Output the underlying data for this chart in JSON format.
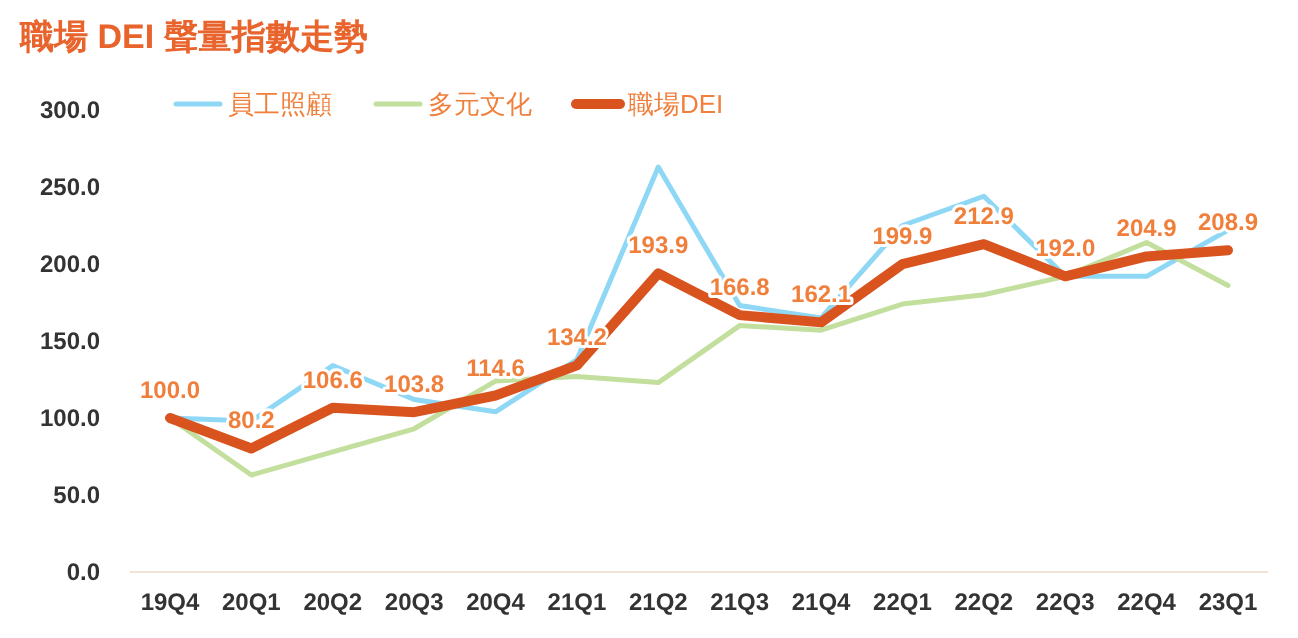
{
  "chart_data": {
    "type": "line",
    "title": "職場 DEI 聲量指數走勢",
    "categories": [
      "19Q4",
      "20Q1",
      "20Q2",
      "20Q3",
      "20Q4",
      "21Q1",
      "21Q2",
      "21Q3",
      "21Q4",
      "22Q1",
      "22Q2",
      "22Q3",
      "22Q4",
      "23Q1"
    ],
    "series": [
      {
        "name": "員工照顧",
        "color": "#8fd8f5",
        "values": [
          100,
          98,
          134,
          112,
          104,
          138,
          263,
          173,
          165,
          225,
          244,
          192,
          192,
          222
        ]
      },
      {
        "name": "多元文化",
        "color": "#c2df9e",
        "values": [
          100,
          63,
          78,
          93,
          124,
          127,
          123,
          160,
          157,
          174,
          180,
          192,
          214,
          186
        ]
      },
      {
        "name": "職場DEI",
        "color": "#d9531e",
        "values": [
          100.0,
          80.2,
          106.6,
          103.8,
          114.6,
          134.2,
          193.9,
          166.8,
          162.1,
          199.9,
          212.9,
          192.0,
          204.9,
          208.9
        ],
        "value_labels": [
          "100.0",
          "80.2",
          "106.6",
          "103.8",
          "114.6",
          "134.2",
          "193.9",
          "166.8",
          "162.1",
          "199.9",
          "212.9",
          "192.0",
          "204.9",
          "208.9"
        ]
      }
    ],
    "ylim": [
      0,
      300
    ],
    "yticks": [
      {
        "value": 0,
        "label": "0.0"
      },
      {
        "value": 50,
        "label": "50.0"
      },
      {
        "value": 100,
        "label": "100.0"
      },
      {
        "value": 150,
        "label": "150.0"
      },
      {
        "value": 200,
        "label": "200.0"
      },
      {
        "value": 250,
        "label": "250.0"
      },
      {
        "value": 300,
        "label": "300.0"
      }
    ],
    "grid": false,
    "legend": "top",
    "marker": "none",
    "line_style": "solid"
  }
}
